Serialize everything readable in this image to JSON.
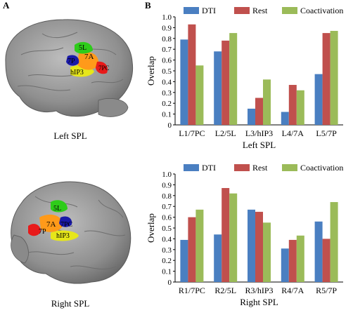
{
  "panel_a": {
    "letter": "A",
    "left_caption": "Left SPL",
    "right_caption": "Right SPL",
    "left_region_labels": [
      "5L",
      "7A",
      "7PC",
      "7P",
      "hIP3"
    ],
    "right_region_labels": [
      "5L",
      "7A",
      "7PC",
      "7P",
      "hIP3"
    ]
  },
  "panel_b": {
    "letter": "B"
  },
  "colors": {
    "dti": "#4a7fc1",
    "rest": "#c0504d",
    "coactivation": "#9bbb59",
    "region_5l": "#2ecc1a",
    "region_7a": "#ff9a1a",
    "region_7pc": "#1a1aa8",
    "region_7p": "#e81a1a",
    "region_hip3": "#e6e61a"
  },
  "chart_data": [
    {
      "type": "bar",
      "categories": [
        "L1/7PC",
        "L2/5L",
        "L3/hIP3",
        "L4/7A",
        "L5/7P"
      ],
      "series": [
        {
          "name": "DTI",
          "values": [
            0.79,
            0.68,
            0.15,
            0.12,
            0.47
          ]
        },
        {
          "name": "Rest",
          "values": [
            0.93,
            0.78,
            0.25,
            0.37,
            0.85
          ]
        },
        {
          "name": "Coactivation",
          "values": [
            0.55,
            0.85,
            0.42,
            0.32,
            0.87
          ]
        }
      ],
      "xlabel": "Left SPL",
      "ylabel": "Overlap",
      "ylim": [
        0,
        1.0
      ],
      "yticks": [
        "0",
        "0.1",
        "0.2",
        "0.3",
        "0.4",
        "0.5",
        "0.6",
        "0.7",
        "0.8",
        "0.9",
        "1.0"
      ],
      "legend": "top"
    },
    {
      "type": "bar",
      "categories": [
        "R1/7PC",
        "R2/5L",
        "R3/hIP3",
        "R4/7A",
        "R5/7P"
      ],
      "series": [
        {
          "name": "DTI",
          "values": [
            0.39,
            0.44,
            0.67,
            0.31,
            0.56
          ]
        },
        {
          "name": "Rest",
          "values": [
            0.6,
            0.87,
            0.65,
            0.39,
            0.4
          ]
        },
        {
          "name": "Coactivation",
          "values": [
            0.67,
            0.82,
            0.55,
            0.43,
            0.74
          ]
        }
      ],
      "xlabel": "Right SPL",
      "ylabel": "Overlap",
      "ylim": [
        0,
        1.0
      ],
      "yticks": [
        "0",
        "0.1",
        "0.2",
        "0.3",
        "0.4",
        "0.5",
        "0.6",
        "0.7",
        "0.8",
        "0.9",
        "1.0"
      ],
      "legend": "top"
    }
  ]
}
